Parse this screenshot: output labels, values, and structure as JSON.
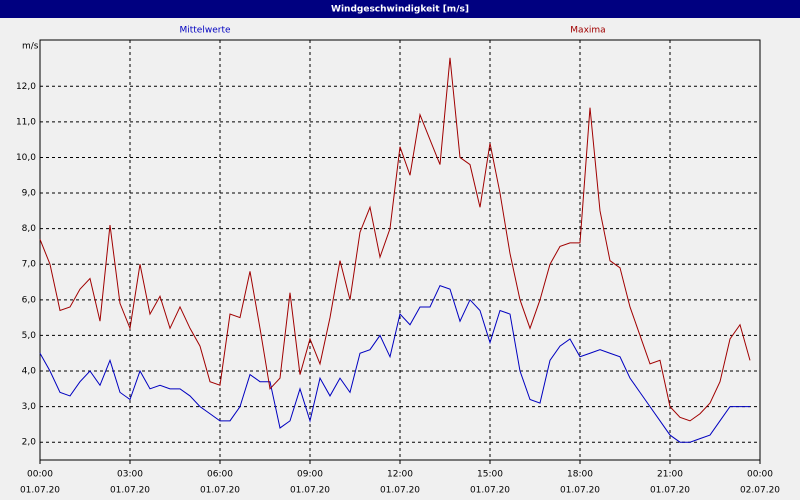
{
  "chart_data": {
    "type": "line",
    "title": "Windgeschwindigkeit [m/s]",
    "y_label": "m/s",
    "x": [
      0,
      20,
      40,
      60,
      80,
      100,
      120,
      140,
      160,
      180,
      200,
      220,
      240,
      260,
      280,
      300,
      320,
      340,
      360,
      380,
      400,
      420,
      440,
      460,
      480,
      500,
      520,
      540,
      560,
      580,
      600,
      620,
      640,
      660,
      680,
      700,
      720,
      740,
      760,
      780,
      800,
      820,
      840,
      860,
      880,
      900,
      920,
      940,
      960,
      980,
      1000,
      1020,
      1040,
      1060,
      1080,
      1100,
      1120,
      1140,
      1160,
      1180,
      1200,
      1220,
      1240,
      1260,
      1280,
      1300,
      1320,
      1340,
      1360,
      1380,
      1400,
      1420
    ],
    "series": [
      {
        "name": "Mittelwerte",
        "color": "#0000c0",
        "values": [
          4.5,
          4.0,
          3.4,
          3.3,
          3.7,
          4.0,
          3.6,
          4.3,
          3.4,
          3.2,
          4.0,
          3.5,
          3.6,
          3.5,
          3.5,
          3.3,
          3.0,
          2.8,
          2.6,
          2.6,
          3.0,
          3.9,
          3.7,
          3.7,
          2.4,
          2.6,
          3.5,
          2.6,
          3.8,
          3.3,
          3.8,
          3.4,
          4.5,
          4.6,
          5.0,
          4.4,
          5.6,
          5.3,
          5.8,
          5.8,
          6.4,
          6.3,
          5.4,
          6.0,
          5.7,
          4.8,
          5.7,
          5.6,
          4.0,
          3.2,
          3.1,
          4.3,
          4.7,
          4.9,
          4.4,
          4.5,
          4.6,
          4.5,
          4.4,
          3.8,
          3.4,
          3.0,
          2.6,
          2.2,
          2.0,
          2.0,
          2.1,
          2.2,
          2.6,
          3.0,
          3.0,
          3.0
        ]
      },
      {
        "name": "Maxima",
        "color": "#a00000",
        "values": [
          7.7,
          7.0,
          5.7,
          5.8,
          6.3,
          6.6,
          5.4,
          8.1,
          5.9,
          5.2,
          7.0,
          5.6,
          6.1,
          5.2,
          5.8,
          5.2,
          4.7,
          3.7,
          3.6,
          5.6,
          5.5,
          6.8,
          5.2,
          3.5,
          3.8,
          6.2,
          3.9,
          4.9,
          4.2,
          5.5,
          7.1,
          6.0,
          7.9,
          8.6,
          7.2,
          8.0,
          10.3,
          9.5,
          11.2,
          10.5,
          9.8,
          12.8,
          10.0,
          9.8,
          8.6,
          10.4,
          9.0,
          7.3,
          6.0,
          5.2,
          6.0,
          7.0,
          7.5,
          7.6,
          7.6,
          11.4,
          8.5,
          7.1,
          6.9,
          5.8,
          5.0,
          4.2,
          4.3,
          3.0,
          2.7,
          2.6,
          2.8,
          3.1,
          3.7,
          4.9,
          5.3,
          4.3
        ]
      }
    ],
    "xlim": [
      0,
      1440
    ],
    "xticks": [
      {
        "value": 0,
        "label": "00:00",
        "date": "01.07.20"
      },
      {
        "value": 180,
        "label": "03:00",
        "date": "01.07.20"
      },
      {
        "value": 360,
        "label": "06:00",
        "date": "01.07.20"
      },
      {
        "value": 540,
        "label": "09:00",
        "date": "01.07.20"
      },
      {
        "value": 720,
        "label": "12:00",
        "date": "01.07.20"
      },
      {
        "value": 900,
        "label": "15:00",
        "date": "01.07.20"
      },
      {
        "value": 1080,
        "label": "18:00",
        "date": "01.07.20"
      },
      {
        "value": 1260,
        "label": "21:00",
        "date": "01.07.20"
      },
      {
        "value": 1440,
        "label": "00:00",
        "date": "02.07.20"
      }
    ],
    "ylim": [
      1.5,
      13.3
    ],
    "yticks": [
      {
        "value": 2,
        "label": "2,0"
      },
      {
        "value": 3,
        "label": "3,0"
      },
      {
        "value": 4,
        "label": "4,0"
      },
      {
        "value": 5,
        "label": "5,0"
      },
      {
        "value": 6,
        "label": "6,0"
      },
      {
        "value": 7,
        "label": "7,0"
      },
      {
        "value": 8,
        "label": "8,0"
      },
      {
        "value": 9,
        "label": "9,0"
      },
      {
        "value": 10,
        "label": "10,0"
      },
      {
        "value": 11,
        "label": "11,0"
      },
      {
        "value": 12,
        "label": "12,0"
      }
    ],
    "grid": true
  }
}
